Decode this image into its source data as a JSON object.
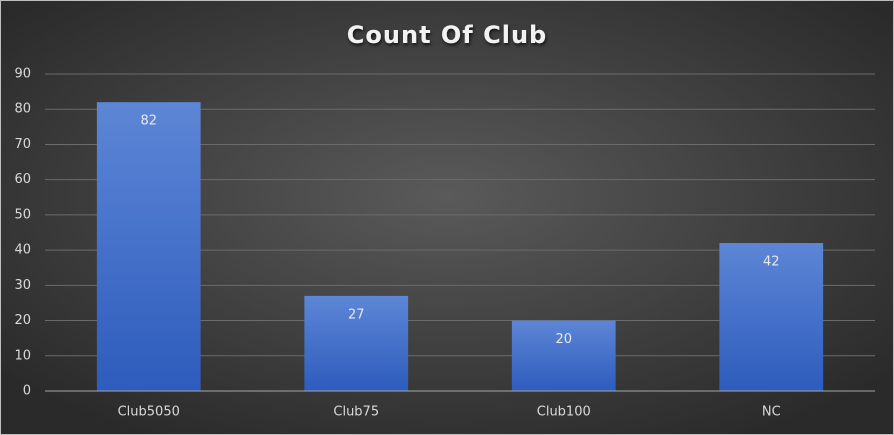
{
  "chart_data": {
    "type": "bar",
    "title": "Count Of Club",
    "categories": [
      "Club5050",
      "Club75",
      "Club100",
      "NC"
    ],
    "values": [
      82,
      27,
      20,
      42
    ],
    "color": "#4472c4",
    "ylim": [
      0,
      90
    ],
    "yticks": [
      0,
      10,
      20,
      30,
      40,
      50,
      60,
      70,
      80,
      90
    ],
    "grid": true,
    "data_labels": true
  }
}
